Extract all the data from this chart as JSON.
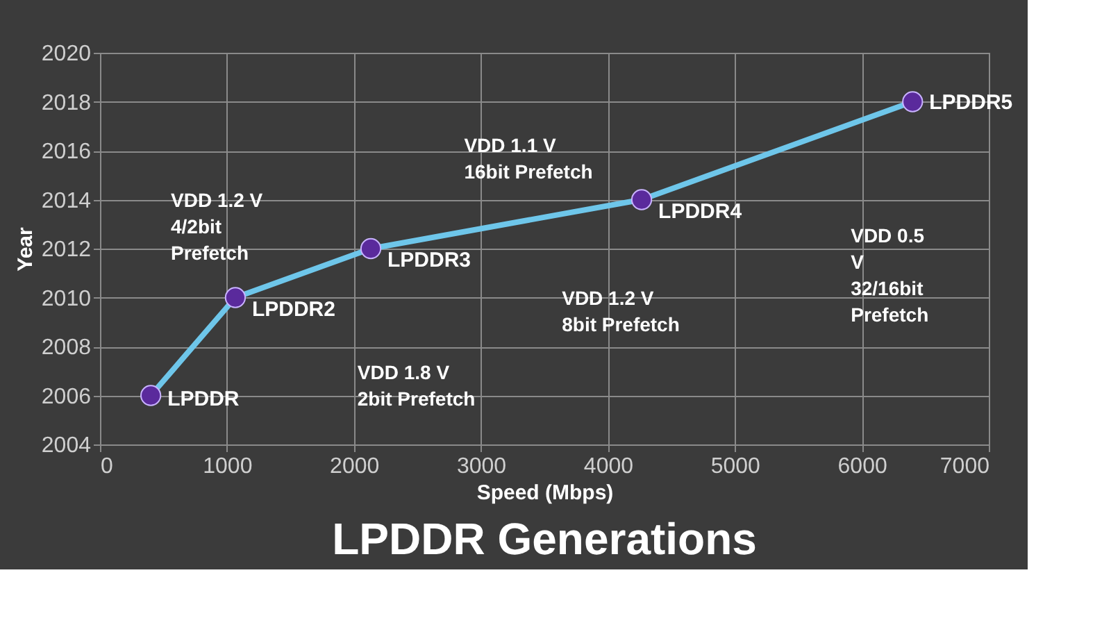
{
  "chart_data": {
    "type": "line",
    "title": "LPDDR Generations",
    "xlabel": "Speed (Mbps)",
    "ylabel": "Year",
    "x": [
      400,
      1066,
      2133,
      4266,
      6400
    ],
    "series": [
      {
        "color": "#6ec6ea",
        "values": [
          2006,
          2010,
          2012,
          2014,
          2018
        ]
      }
    ],
    "marker": "circle",
    "line_style": "solid",
    "grid": true,
    "xlim": [
      0,
      7000
    ],
    "xticks": [
      0,
      1000,
      2000,
      3000,
      4000,
      5000,
      6000,
      7000
    ],
    "ylim": [
      2004,
      2020
    ],
    "yticks": [
      2004,
      2006,
      2008,
      2010,
      2012,
      2014,
      2016,
      2018,
      2020
    ],
    "annotations": [
      {
        "text": "LPDDR",
        "x": 400,
        "y": 2006
      },
      {
        "text": "LPDDR2",
        "x": 1066,
        "y": 2010
      },
      {
        "text": "LPDDR3",
        "x": 2133,
        "y": 2012
      },
      {
        "text": "LPDDR4",
        "x": 4266,
        "y": 2014
      },
      {
        "text": "LPDDR5",
        "x": 6400,
        "y": 2018
      },
      "VDD 1.8 V\n2bit Prefetch",
      "VDD 1.2 V\n4/2bit\nPrefetch",
      "VDD 1.2 V\n8bit Prefetch",
      "VDD 1.1 V\n16bit Prefetch",
      "VDD 0.5\nV\n32/16bit\nPrefetch"
    ]
  }
}
